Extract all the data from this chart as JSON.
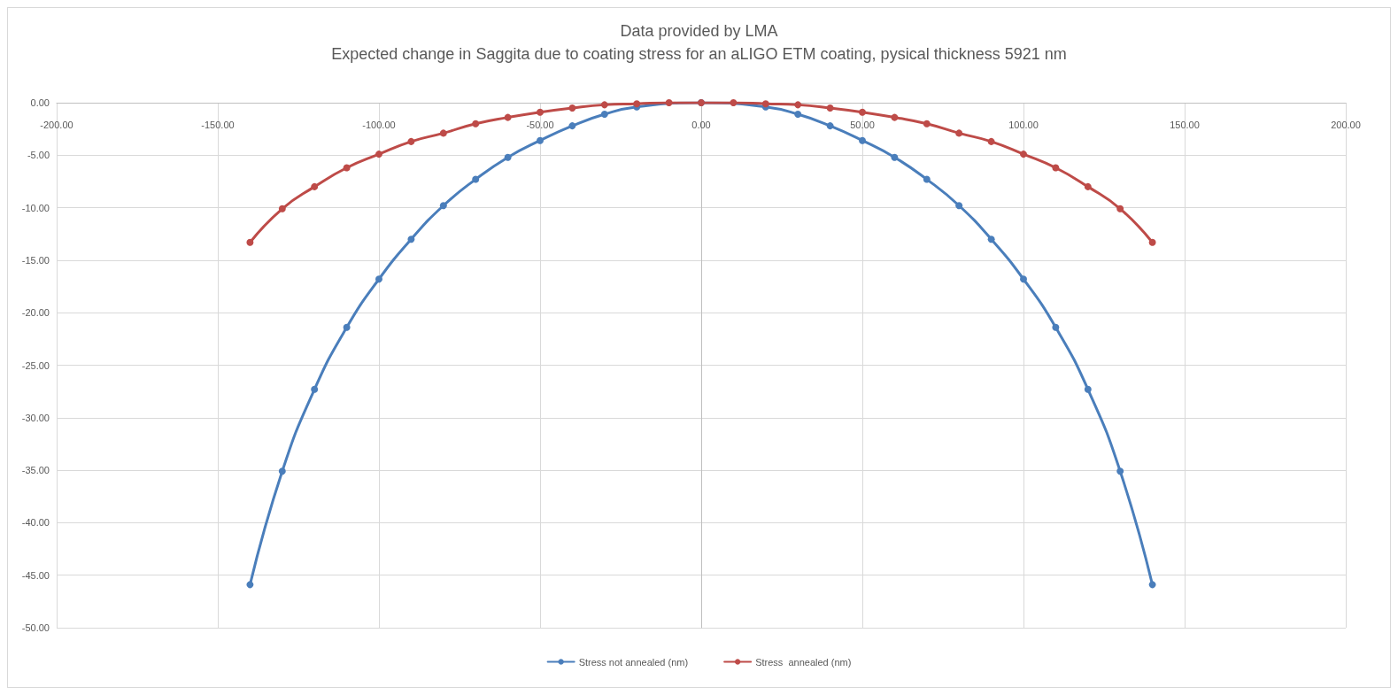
{
  "chart_data": {
    "type": "line",
    "title": "Data provided by LMA",
    "subtitle": "Expected change in Saggita due to coating stress for an aLIGO ETM coating, pysical thickness 5921 nm",
    "x": [
      -140,
      -130,
      -120,
      -110,
      -100,
      -90,
      -80,
      -70,
      -60,
      -50,
      -40,
      -30,
      -20,
      -10,
      0,
      10,
      20,
      30,
      40,
      50,
      60,
      70,
      80,
      90,
      100,
      110,
      120,
      130,
      140
    ],
    "series": [
      {
        "name": "Stress not annealed (nm)",
        "color": "#4a7ebb",
        "values": [
          -45.9,
          -35.1,
          -27.3,
          -21.4,
          -16.8,
          -13.0,
          -9.8,
          -7.3,
          -5.2,
          -3.6,
          -2.2,
          -1.1,
          -0.4,
          null,
          0,
          null,
          -0.4,
          -1.1,
          -2.2,
          -3.6,
          -5.2,
          -7.3,
          -9.8,
          -13.0,
          -16.8,
          -21.4,
          -27.3,
          -35.1,
          -45.9
        ]
      },
      {
        "name": "Stress  annealed (nm)",
        "color": "#be4b48",
        "values": [
          -13.3,
          -10.1,
          -8.0,
          -6.2,
          -4.9,
          -3.7,
          -2.9,
          -2.0,
          -1.4,
          -0.9,
          -0.5,
          -0.2,
          -0.1,
          0,
          0,
          0,
          -0.1,
          -0.2,
          -0.5,
          -0.9,
          -1.4,
          -2.0,
          -2.9,
          -3.7,
          -4.9,
          -6.2,
          -8.0,
          -10.1,
          -13.3
        ]
      }
    ],
    "xlim": [
      -200,
      200
    ],
    "xticks": [
      {
        "value": -200,
        "label": "-200.00"
      },
      {
        "value": -150,
        "label": "-150.00"
      },
      {
        "value": -100,
        "label": "-100.00"
      },
      {
        "value": -50,
        "label": "-50.00"
      },
      {
        "value": 0,
        "label": "0.00"
      },
      {
        "value": 50,
        "label": "50.00"
      },
      {
        "value": 100,
        "label": "100.00"
      },
      {
        "value": 150,
        "label": "150.00"
      },
      {
        "value": 200,
        "label": "200.00"
      }
    ],
    "ylim": [
      -50,
      0
    ],
    "yticks": [
      {
        "value": -50,
        "label": "-50.00"
      },
      {
        "value": -45,
        "label": "-45.00"
      },
      {
        "value": -40,
        "label": "-40.00"
      },
      {
        "value": -35,
        "label": "-35.00"
      },
      {
        "value": -30,
        "label": "-30.00"
      },
      {
        "value": -25,
        "label": "-25.00"
      },
      {
        "value": -20,
        "label": "-20.00"
      },
      {
        "value": -15,
        "label": "-15.00"
      },
      {
        "value": -10,
        "label": "-10.00"
      },
      {
        "value": -5,
        "label": "-5.00"
      },
      {
        "value": 0,
        "label": "0.00"
      }
    ],
    "grid": true,
    "legend": "bottom",
    "marker": "circle",
    "line_style": "solid"
  }
}
